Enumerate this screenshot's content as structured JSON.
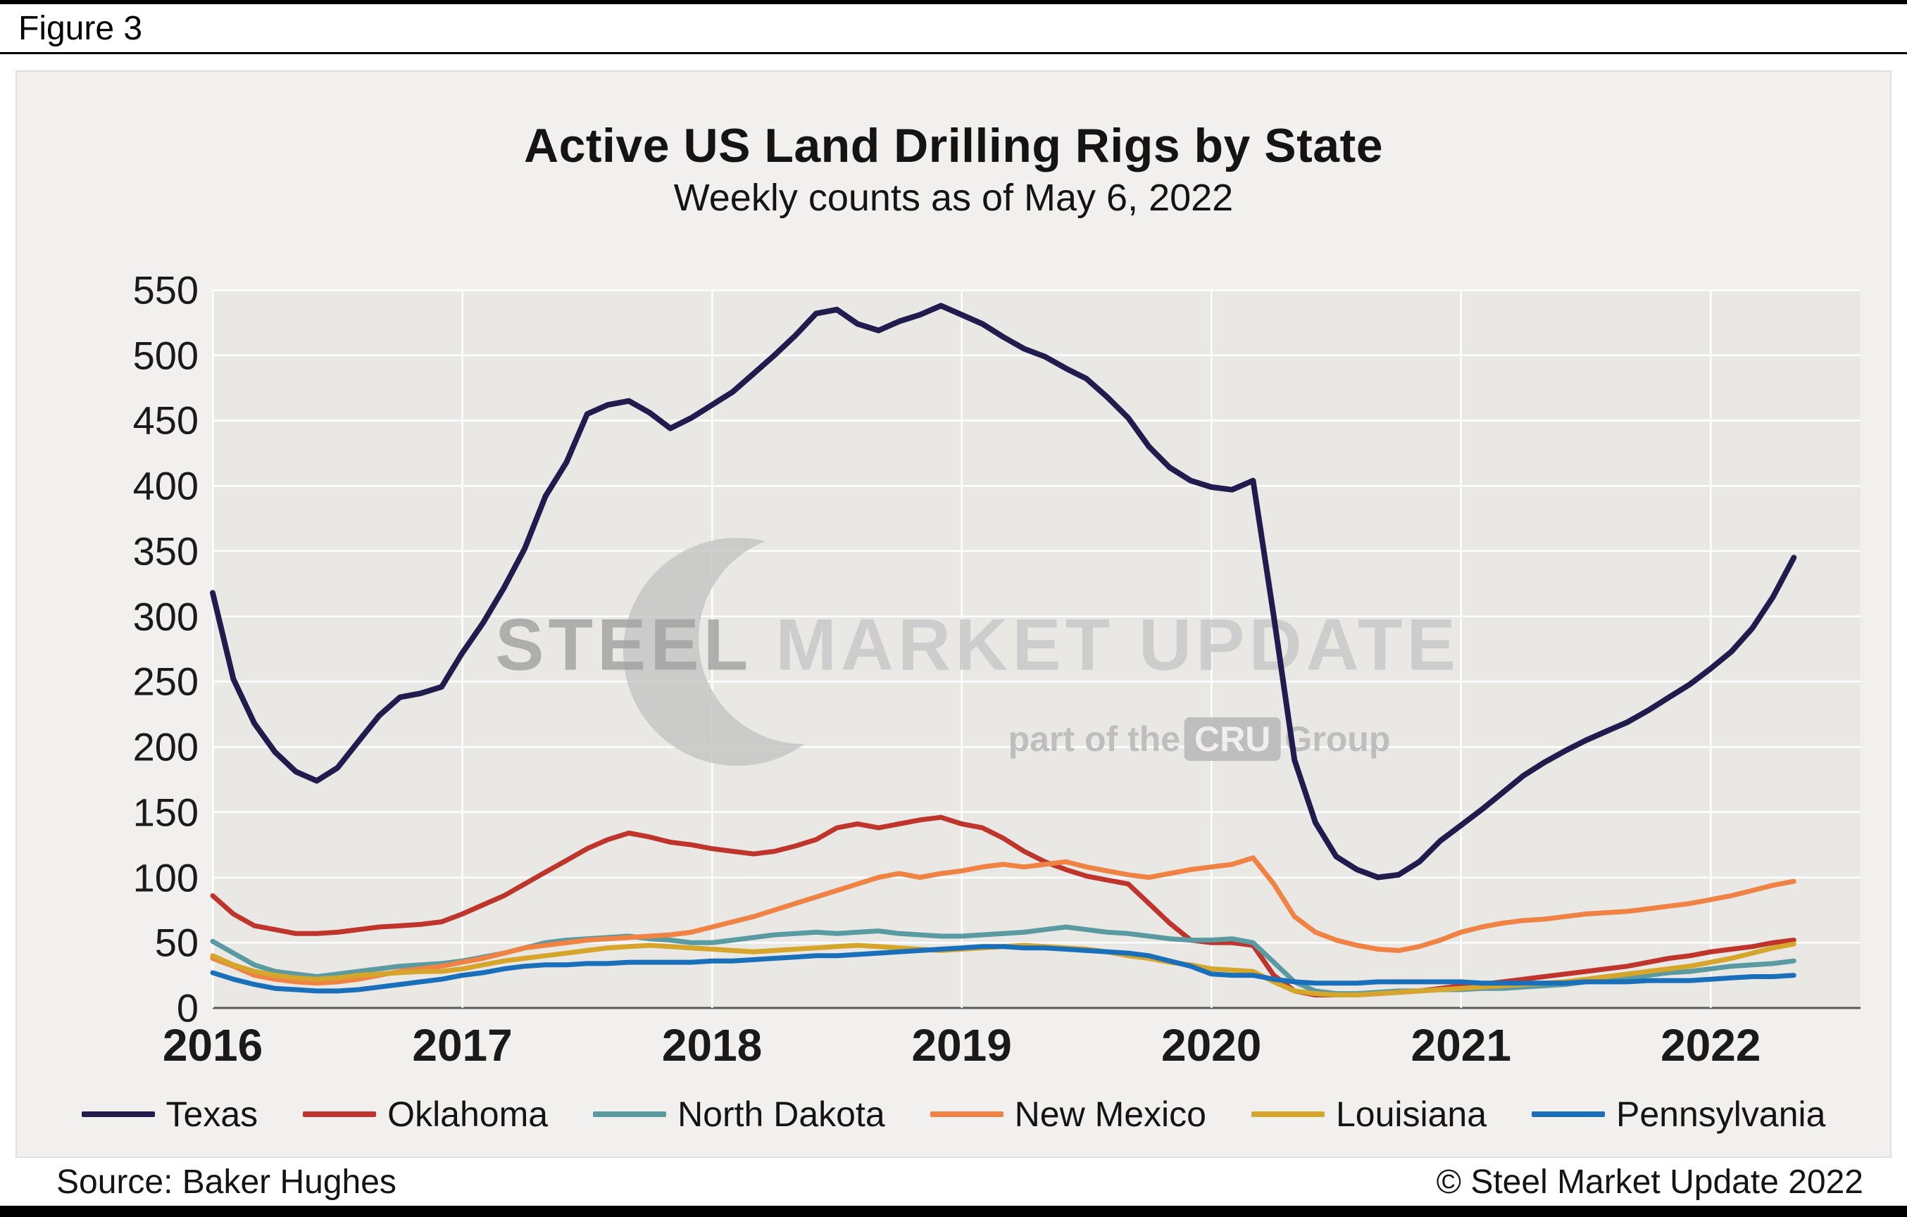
{
  "figure_label": "Figure 3",
  "watermark": {
    "steel": "STEEL",
    "market_update": "MARKET UPDATE",
    "part_of_the": "part of the",
    "cru": "CRU",
    "group": "Group"
  },
  "footer": {
    "source": "Source: Baker Hughes",
    "copyright": "© Steel Market Update 2022"
  },
  "chart_data": {
    "type": "line",
    "title": "Active US Land Drilling Rigs by State",
    "subtitle": "Weekly counts as of May 6, 2022",
    "xlabel": "",
    "ylabel": "",
    "xlim": [
      2016,
      2022.6
    ],
    "ylim": [
      0,
      550
    ],
    "ytick_step": 50,
    "x_ticks": [
      2016,
      2017,
      2018,
      2019,
      2020,
      2021,
      2022
    ],
    "grid": true,
    "legend_position": "bottom",
    "plot_bg": "#e9e8e5",
    "gridline_color": "#ffffff",
    "axis_line_color": "#5a5a5a",
    "x": [
      2016.0,
      2016.083,
      2016.167,
      2016.25,
      2016.333,
      2016.417,
      2016.5,
      2016.583,
      2016.667,
      2016.75,
      2016.833,
      2016.917,
      2017.0,
      2017.083,
      2017.167,
      2017.25,
      2017.333,
      2017.417,
      2017.5,
      2017.583,
      2017.667,
      2017.75,
      2017.833,
      2017.917,
      2018.0,
      2018.083,
      2018.167,
      2018.25,
      2018.333,
      2018.417,
      2018.5,
      2018.583,
      2018.667,
      2018.75,
      2018.833,
      2018.917,
      2019.0,
      2019.083,
      2019.167,
      2019.25,
      2019.333,
      2019.417,
      2019.5,
      2019.583,
      2019.667,
      2019.75,
      2019.833,
      2019.917,
      2020.0,
      2020.083,
      2020.167,
      2020.25,
      2020.333,
      2020.417,
      2020.5,
      2020.583,
      2020.667,
      2020.75,
      2020.833,
      2020.917,
      2021.0,
      2021.083,
      2021.167,
      2021.25,
      2021.333,
      2021.417,
      2021.5,
      2021.583,
      2021.667,
      2021.75,
      2021.833,
      2021.917,
      2022.0,
      2022.083,
      2022.167,
      2022.25,
      2022.333
    ],
    "series": [
      {
        "name": "Texas",
        "color": "#211c4e",
        "width": 8,
        "values": [
          318,
          252,
          218,
          196,
          181,
          174,
          184,
          204,
          224,
          238,
          241,
          246,
          272,
          295,
          322,
          352,
          392,
          418,
          455,
          462,
          465,
          456,
          444,
          452,
          462,
          472,
          486,
          500,
          515,
          532,
          535,
          524,
          519,
          526,
          531,
          538,
          531,
          524,
          514,
          505,
          499,
          490,
          482,
          468,
          452,
          430,
          414,
          404,
          399,
          397,
          404,
          300,
          190,
          142,
          116,
          106,
          100,
          102,
          112,
          128,
          140,
          152,
          165,
          178,
          188,
          197,
          205,
          212,
          219,
          228,
          238,
          248,
          260,
          273,
          291,
          315,
          345
        ]
      },
      {
        "name": "Oklahoma",
        "color": "#bf352b",
        "width": 7,
        "values": [
          86,
          72,
          63,
          60,
          57,
          57,
          58,
          60,
          62,
          63,
          64,
          66,
          72,
          79,
          86,
          95,
          104,
          113,
          122,
          129,
          134,
          131,
          127,
          125,
          122,
          120,
          118,
          120,
          124,
          129,
          138,
          141,
          138,
          141,
          144,
          146,
          141,
          138,
          130,
          120,
          112,
          106,
          101,
          98,
          95,
          80,
          65,
          52,
          50,
          50,
          48,
          25,
          13,
          10,
          10,
          10,
          11,
          12,
          13,
          15,
          17,
          18,
          20,
          22,
          24,
          26,
          28,
          30,
          32,
          35,
          38,
          40,
          43,
          45,
          47,
          50,
          52
        ]
      },
      {
        "name": "North Dakota",
        "color": "#5a9aa1",
        "width": 7,
        "values": [
          51,
          42,
          33,
          28,
          26,
          24,
          26,
          28,
          30,
          32,
          33,
          34,
          36,
          39,
          42,
          46,
          50,
          52,
          53,
          54,
          55,
          53,
          52,
          50,
          50,
          52,
          54,
          56,
          57,
          58,
          57,
          58,
          59,
          57,
          56,
          55,
          55,
          56,
          57,
          58,
          60,
          62,
          60,
          58,
          57,
          55,
          53,
          52,
          52,
          53,
          50,
          35,
          20,
          13,
          11,
          11,
          12,
          13,
          13,
          14,
          14,
          15,
          15,
          16,
          17,
          18,
          20,
          22,
          23,
          25,
          27,
          28,
          30,
          32,
          33,
          34,
          36
        ]
      },
      {
        "name": "New Mexico",
        "color": "#f08244",
        "width": 7,
        "values": [
          38,
          32,
          25,
          22,
          20,
          19,
          20,
          22,
          25,
          28,
          30,
          32,
          35,
          38,
          42,
          46,
          48,
          50,
          52,
          53,
          54,
          55,
          56,
          58,
          62,
          66,
          70,
          75,
          80,
          85,
          90,
          95,
          100,
          103,
          100,
          103,
          105,
          108,
          110,
          108,
          110,
          112,
          108,
          105,
          102,
          100,
          103,
          106,
          108,
          110,
          115,
          95,
          70,
          58,
          52,
          48,
          45,
          44,
          47,
          52,
          58,
          62,
          65,
          67,
          68,
          70,
          72,
          73,
          74,
          76,
          78,
          80,
          83,
          86,
          90,
          94,
          97
        ]
      },
      {
        "name": "Louisiana",
        "color": "#d5a62b",
        "width": 7,
        "values": [
          40,
          33,
          28,
          25,
          23,
          22,
          23,
          25,
          26,
          27,
          28,
          28,
          30,
          33,
          36,
          38,
          40,
          42,
          44,
          46,
          47,
          48,
          47,
          46,
          45,
          44,
          43,
          44,
          45,
          46,
          47,
          48,
          47,
          46,
          45,
          44,
          45,
          46,
          47,
          48,
          47,
          46,
          45,
          43,
          40,
          38,
          35,
          33,
          30,
          29,
          28,
          20,
          13,
          11,
          10,
          10,
          11,
          12,
          13,
          14,
          15,
          16,
          17,
          18,
          19,
          20,
          22,
          24,
          26,
          28,
          30,
          32,
          35,
          38,
          42,
          46,
          49
        ]
      },
      {
        "name": "Pennsylvania",
        "color": "#1a6fba",
        "width": 7,
        "values": [
          27,
          22,
          18,
          15,
          14,
          13,
          13,
          14,
          16,
          18,
          20,
          22,
          25,
          27,
          30,
          32,
          33,
          33,
          34,
          34,
          35,
          35,
          35,
          35,
          36,
          36,
          37,
          38,
          39,
          40,
          40,
          41,
          42,
          43,
          44,
          45,
          46,
          47,
          47,
          46,
          46,
          45,
          44,
          43,
          42,
          40,
          36,
          32,
          26,
          25,
          25,
          22,
          20,
          19,
          19,
          19,
          20,
          20,
          20,
          20,
          20,
          19,
          19,
          19,
          19,
          19,
          20,
          20,
          20,
          21,
          21,
          21,
          22,
          23,
          24,
          24,
          25
        ]
      }
    ]
  }
}
